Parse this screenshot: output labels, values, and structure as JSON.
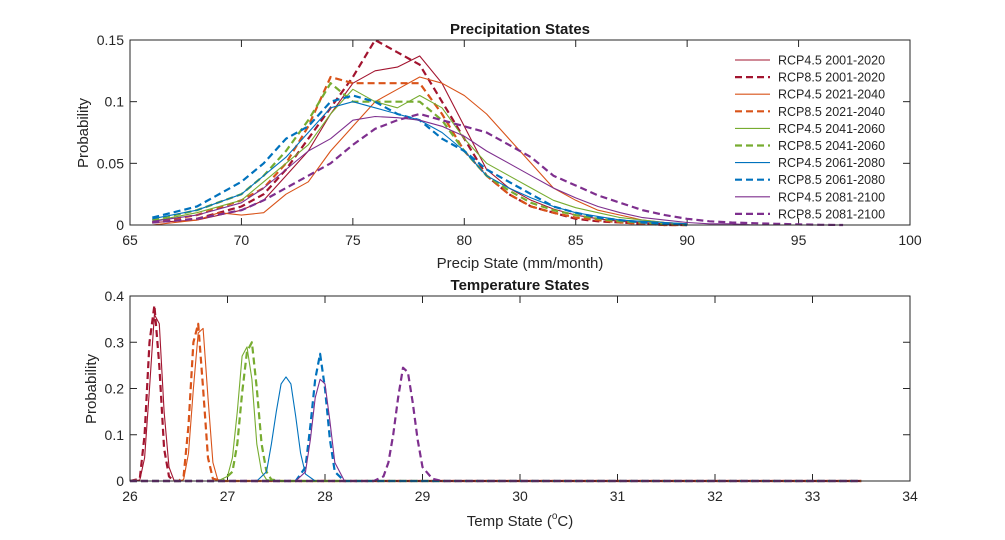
{
  "chart_data": [
    {
      "type": "line",
      "title": "Precipitation States",
      "xlabel": "Precip State (mm/month)",
      "ylabel": "Probability",
      "xlim": [
        65,
        100
      ],
      "ylim": [
        0,
        0.15
      ],
      "xticks": [
        65,
        70,
        75,
        80,
        85,
        90,
        95,
        100
      ],
      "yticks": [
        0,
        0.05,
        0.1,
        0.15
      ],
      "xtick_labels": [
        "65",
        "70",
        "75",
        "80",
        "85",
        "90",
        "95",
        "100"
      ],
      "ytick_labels": [
        "0",
        "0.05",
        "0.1",
        "0.15"
      ],
      "legend": "top-right",
      "grid": false,
      "series": [
        {
          "name": "RCP4.5 2001-2020",
          "color": "#A2142F",
          "dash": false,
          "x": [
            66,
            68,
            70,
            71,
            72,
            73,
            74,
            75,
            76,
            77,
            78,
            79,
            80,
            81,
            82,
            83,
            84,
            85,
            86,
            87,
            88,
            89,
            90
          ],
          "y": [
            0.002,
            0.004,
            0.012,
            0.02,
            0.04,
            0.06,
            0.09,
            0.115,
            0.125,
            0.128,
            0.137,
            0.115,
            0.08,
            0.045,
            0.03,
            0.02,
            0.013,
            0.008,
            0.005,
            0.003,
            0.002,
            0.001,
            0.0
          ]
        },
        {
          "name": "RCP8.5 2001-2020",
          "color": "#A2142F",
          "dash": true,
          "x": [
            66,
            68,
            70,
            71,
            72,
            73,
            74,
            75,
            76,
            77,
            78,
            79,
            80,
            81,
            82,
            83,
            84,
            85,
            86,
            87,
            88,
            89,
            90
          ],
          "y": [
            0.002,
            0.005,
            0.015,
            0.025,
            0.045,
            0.07,
            0.095,
            0.12,
            0.15,
            0.14,
            0.13,
            0.1,
            0.07,
            0.04,
            0.025,
            0.015,
            0.01,
            0.005,
            0.003,
            0.002,
            0.001,
            0.0,
            0.0
          ]
        },
        {
          "name": "RCP4.5 2021-2040",
          "color": "#D95319",
          "dash": false,
          "x": [
            66,
            68,
            69,
            70,
            71,
            72,
            73,
            74,
            75,
            76,
            77,
            78,
            79,
            80,
            81,
            82,
            83,
            84,
            85,
            86,
            87,
            88,
            89,
            90
          ],
          "y": [
            0.0,
            0.004,
            0.01,
            0.008,
            0.01,
            0.025,
            0.035,
            0.06,
            0.08,
            0.1,
            0.11,
            0.12,
            0.115,
            0.105,
            0.09,
            0.07,
            0.05,
            0.03,
            0.02,
            0.012,
            0.008,
            0.004,
            0.002,
            0.001
          ]
        },
        {
          "name": "RCP8.5 2021-2040",
          "color": "#D95319",
          "dash": true,
          "x": [
            66,
            68,
            70,
            71,
            72,
            73,
            74,
            75,
            76,
            77,
            78,
            79,
            80,
            81,
            82,
            83,
            84,
            85,
            86,
            87,
            88,
            89,
            90
          ],
          "y": [
            0.002,
            0.008,
            0.02,
            0.03,
            0.05,
            0.08,
            0.12,
            0.115,
            0.115,
            0.115,
            0.115,
            0.09,
            0.06,
            0.04,
            0.025,
            0.015,
            0.01,
            0.006,
            0.004,
            0.002,
            0.001,
            0.0,
            0.0
          ]
        },
        {
          "name": "RCP4.5 2041-2060",
          "color": "#77AC30",
          "dash": false,
          "x": [
            66,
            68,
            70,
            71,
            72,
            73,
            74,
            75,
            76,
            77,
            78,
            79,
            80,
            81,
            82,
            83,
            84,
            85,
            86,
            87,
            88,
            89,
            90
          ],
          "y": [
            0.003,
            0.01,
            0.02,
            0.035,
            0.05,
            0.065,
            0.09,
            0.11,
            0.1,
            0.095,
            0.105,
            0.095,
            0.07,
            0.05,
            0.04,
            0.03,
            0.02,
            0.014,
            0.01,
            0.006,
            0.004,
            0.002,
            0.001
          ]
        },
        {
          "name": "RCP8.5 2041-2060",
          "color": "#77AC30",
          "dash": true,
          "x": [
            66,
            68,
            70,
            71,
            72,
            73,
            74,
            75,
            76,
            77,
            78,
            79,
            80,
            81,
            82,
            83,
            84,
            85,
            86,
            87,
            88,
            89,
            90
          ],
          "y": [
            0.004,
            0.012,
            0.025,
            0.04,
            0.06,
            0.085,
            0.115,
            0.1,
            0.1,
            0.1,
            0.1,
            0.085,
            0.06,
            0.04,
            0.028,
            0.018,
            0.012,
            0.008,
            0.005,
            0.003,
            0.002,
            0.001,
            0.0
          ]
        },
        {
          "name": "RCP4.5 2061-2080",
          "color": "#0072BD",
          "dash": false,
          "x": [
            66,
            68,
            70,
            71,
            72,
            73,
            74,
            75,
            76,
            77,
            78,
            79,
            80,
            81,
            82,
            83,
            84,
            85,
            86,
            87,
            88,
            89,
            90
          ],
          "y": [
            0.005,
            0.012,
            0.025,
            0.04,
            0.055,
            0.075,
            0.095,
            0.1,
            0.095,
            0.09,
            0.085,
            0.075,
            0.06,
            0.04,
            0.03,
            0.022,
            0.015,
            0.01,
            0.007,
            0.004,
            0.003,
            0.002,
            0.001
          ]
        },
        {
          "name": "RCP8.5 2061-2080",
          "color": "#0072BD",
          "dash": true,
          "x": [
            66,
            68,
            70,
            71,
            72,
            73,
            74,
            75,
            76,
            77,
            78,
            79,
            80,
            81,
            82,
            83,
            84,
            85,
            86,
            87,
            88,
            89,
            90
          ],
          "y": [
            0.006,
            0.015,
            0.035,
            0.05,
            0.07,
            0.08,
            0.1,
            0.105,
            0.1,
            0.09,
            0.085,
            0.07,
            0.06,
            0.045,
            0.035,
            0.025,
            0.015,
            0.01,
            0.006,
            0.004,
            0.002,
            0.001,
            0.0
          ]
        },
        {
          "name": "RCP4.5 2081-2100",
          "color": "#7E2F8E",
          "dash": false,
          "x": [
            66,
            68,
            70,
            71,
            72,
            73,
            74,
            75,
            76,
            77,
            78,
            79,
            80,
            81,
            82,
            83,
            84,
            85,
            86,
            87,
            88,
            89,
            90,
            91,
            92,
            93,
            94,
            95
          ],
          "y": [
            0.003,
            0.008,
            0.018,
            0.03,
            0.045,
            0.06,
            0.07,
            0.085,
            0.088,
            0.087,
            0.085,
            0.08,
            0.072,
            0.06,
            0.05,
            0.04,
            0.03,
            0.022,
            0.015,
            0.01,
            0.006,
            0.004,
            0.002,
            0.001,
            0.001,
            0.0,
            0.0,
            0.0
          ]
        },
        {
          "name": "RCP8.5 2081-2100",
          "color": "#7E2F8E",
          "dash": true,
          "x": [
            66,
            68,
            70,
            71,
            72,
            73,
            74,
            75,
            76,
            77,
            78,
            79,
            80,
            81,
            82,
            83,
            84,
            85,
            86,
            87,
            88,
            89,
            90,
            91,
            92,
            93,
            94,
            95,
            96,
            97
          ],
          "y": [
            0.002,
            0.005,
            0.012,
            0.02,
            0.03,
            0.04,
            0.05,
            0.065,
            0.078,
            0.085,
            0.09,
            0.085,
            0.08,
            0.075,
            0.065,
            0.055,
            0.04,
            0.032,
            0.024,
            0.018,
            0.012,
            0.008,
            0.005,
            0.003,
            0.002,
            0.0015,
            0.001,
            0.0005,
            0.0002,
            0.0
          ]
        }
      ]
    },
    {
      "type": "line",
      "title": "Temperature States",
      "xlabel": "Temp State (",
      "xlabel_sup": "o",
      "xlabel_suffix": "C)",
      "ylabel": "Probability",
      "xlim": [
        26,
        34
      ],
      "ylim": [
        0,
        0.4
      ],
      "xticks": [
        26,
        27,
        28,
        29,
        30,
        31,
        32,
        33,
        34
      ],
      "yticks": [
        0,
        0.1,
        0.2,
        0.3,
        0.4
      ],
      "xtick_labels": [
        "26",
        "27",
        "28",
        "29",
        "30",
        "31",
        "32",
        "33",
        "34"
      ],
      "ytick_labels": [
        "0",
        "0.1",
        "0.2",
        "0.3",
        "0.4"
      ],
      "grid": false,
      "series": [
        {
          "color": "#A2142F",
          "dash": false,
          "x": [
            26.0,
            26.1,
            26.15,
            26.2,
            26.25,
            26.3,
            26.35,
            26.4,
            26.45,
            26.5,
            33.5
          ],
          "y": [
            0.0,
            0.002,
            0.05,
            0.2,
            0.36,
            0.34,
            0.15,
            0.03,
            0.002,
            0.0,
            0.0
          ]
        },
        {
          "color": "#A2142F",
          "dash": true,
          "x": [
            26.0,
            26.1,
            26.15,
            26.2,
            26.25,
            26.3,
            26.35,
            26.4,
            26.45,
            33.5
          ],
          "y": [
            0.0,
            0.005,
            0.1,
            0.3,
            0.38,
            0.25,
            0.07,
            0.01,
            0.0,
            0.0
          ]
        },
        {
          "color": "#D95319",
          "dash": false,
          "x": [
            26.0,
            26.5,
            26.55,
            26.6,
            26.65,
            26.7,
            26.75,
            26.8,
            26.85,
            26.9,
            27.0,
            33.5
          ],
          "y": [
            0.0,
            0.0,
            0.003,
            0.06,
            0.2,
            0.32,
            0.33,
            0.18,
            0.04,
            0.003,
            0.0,
            0.0
          ]
        },
        {
          "color": "#D95319",
          "dash": true,
          "x": [
            26.0,
            26.5,
            26.55,
            26.6,
            26.65,
            26.7,
            26.75,
            26.8,
            26.85,
            26.95,
            33.5
          ],
          "y": [
            0.0,
            0.0,
            0.01,
            0.12,
            0.3,
            0.34,
            0.2,
            0.05,
            0.005,
            0.0,
            0.0
          ]
        },
        {
          "color": "#77AC30",
          "dash": false,
          "x": [
            26.0,
            26.9,
            27.0,
            27.05,
            27.1,
            27.15,
            27.2,
            27.25,
            27.3,
            27.35,
            27.4,
            27.5,
            33.5
          ],
          "y": [
            0.0,
            0.0,
            0.01,
            0.05,
            0.15,
            0.27,
            0.29,
            0.22,
            0.08,
            0.02,
            0.003,
            0.0,
            0.0
          ]
        },
        {
          "color": "#77AC30",
          "dash": true,
          "x": [
            26.0,
            26.95,
            27.05,
            27.1,
            27.15,
            27.2,
            27.25,
            27.3,
            27.35,
            27.4,
            27.45,
            27.55,
            33.5
          ],
          "y": [
            0.0,
            0.0,
            0.02,
            0.08,
            0.19,
            0.28,
            0.3,
            0.2,
            0.08,
            0.02,
            0.003,
            0.0,
            0.0
          ]
        },
        {
          "color": "#0072BD",
          "dash": false,
          "x": [
            26.0,
            27.3,
            27.4,
            27.45,
            27.5,
            27.55,
            27.6,
            27.65,
            27.7,
            27.75,
            27.8,
            27.9,
            33.5
          ],
          "y": [
            0.0,
            0.0,
            0.02,
            0.08,
            0.15,
            0.21,
            0.225,
            0.21,
            0.14,
            0.06,
            0.015,
            0.0,
            0.0
          ]
        },
        {
          "color": "#0072BD",
          "dash": true,
          "x": [
            26.0,
            27.7,
            27.8,
            27.85,
            27.9,
            27.95,
            28.0,
            28.05,
            28.1,
            28.2,
            33.5
          ],
          "y": [
            0.0,
            0.0,
            0.03,
            0.12,
            0.22,
            0.275,
            0.2,
            0.09,
            0.02,
            0.0,
            0.0
          ]
        },
        {
          "color": "#7E2F8E",
          "dash": false,
          "x": [
            26.0,
            27.7,
            27.8,
            27.85,
            27.9,
            27.95,
            28.0,
            28.05,
            28.1,
            28.2,
            33.5
          ],
          "y": [
            0.0,
            0.0,
            0.02,
            0.09,
            0.18,
            0.22,
            0.21,
            0.13,
            0.04,
            0.0,
            0.0
          ]
        },
        {
          "color": "#7E2F8E",
          "dash": true,
          "x": [
            26.0,
            28.5,
            28.6,
            28.65,
            28.7,
            28.75,
            28.8,
            28.85,
            28.9,
            28.95,
            29.0,
            29.1,
            29.2,
            33.5
          ],
          "y": [
            0.0,
            0.0,
            0.01,
            0.04,
            0.1,
            0.18,
            0.245,
            0.235,
            0.17,
            0.09,
            0.03,
            0.005,
            0.0,
            0.0
          ]
        }
      ]
    }
  ]
}
